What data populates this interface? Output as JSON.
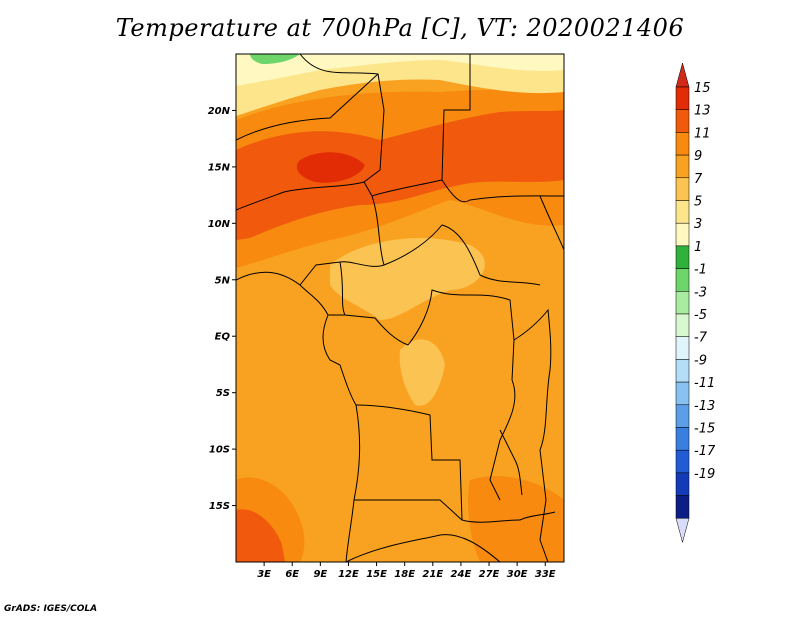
{
  "title": "Temperature at 700hPa [C], VT: 2020021406",
  "credit": "GrADS: IGES/COLA",
  "lat_ticks": [
    {
      "label": "20N",
      "value": 20
    },
    {
      "label": "15N",
      "value": 15
    },
    {
      "label": "10N",
      "value": 10
    },
    {
      "label": "5N",
      "value": 5
    },
    {
      "label": "EQ",
      "value": 0
    },
    {
      "label": "5S",
      "value": -5
    },
    {
      "label": "10S",
      "value": -10
    },
    {
      "label": "15S",
      "value": -15
    }
  ],
  "lon_ticks": [
    {
      "label": "3E",
      "value": 3
    },
    {
      "label": "6E",
      "value": 6
    },
    {
      "label": "9E",
      "value": 9
    },
    {
      "label": "12E",
      "value": 12
    },
    {
      "label": "15E",
      "value": 15
    },
    {
      "label": "18E",
      "value": 18
    },
    {
      "label": "21E",
      "value": 21
    },
    {
      "label": "24E",
      "value": 24
    },
    {
      "label": "27E",
      "value": 27
    },
    {
      "label": "30E",
      "value": 30
    },
    {
      "label": "33E",
      "value": 33
    }
  ],
  "map_extent": {
    "lon_min": 0,
    "lon_max": 35,
    "lat_min": -20,
    "lat_max": 25
  },
  "colorbar": {
    "labels": [
      "15",
      "13",
      "11",
      "9",
      "7",
      "5",
      "3",
      "1",
      "-1",
      "-3",
      "-5",
      "-7",
      "-9",
      "-11",
      "-13",
      "-15",
      "-17",
      "-19"
    ],
    "colors": [
      "#e12c06",
      "#f15a0c",
      "#f78a0f",
      "#f9a221",
      "#fbc452",
      "#fde58c",
      "#fff8c0",
      "#2fb13b",
      "#6ed56b",
      "#a8eca0",
      "#d7f8d0",
      "#e0f4fb",
      "#b4ddf7",
      "#88c2f2",
      "#5c9fe8",
      "#3a7fe0",
      "#215cd4",
      "#133bb7",
      "#0c1d86"
    ],
    "top_arrow_color": "#d22a18",
    "bottom_arrow_color": "#d8dcf8"
  },
  "map_colors": {
    "base": "#f9a221",
    "warm": "#f78a0f",
    "hot": "#f15a0c",
    "hottest": "#e12c06",
    "cool": "#fbc452",
    "cooler": "#fde58c",
    "coolest": "#fff8c0",
    "green": "#6ed56b",
    "borders": "#000000"
  }
}
